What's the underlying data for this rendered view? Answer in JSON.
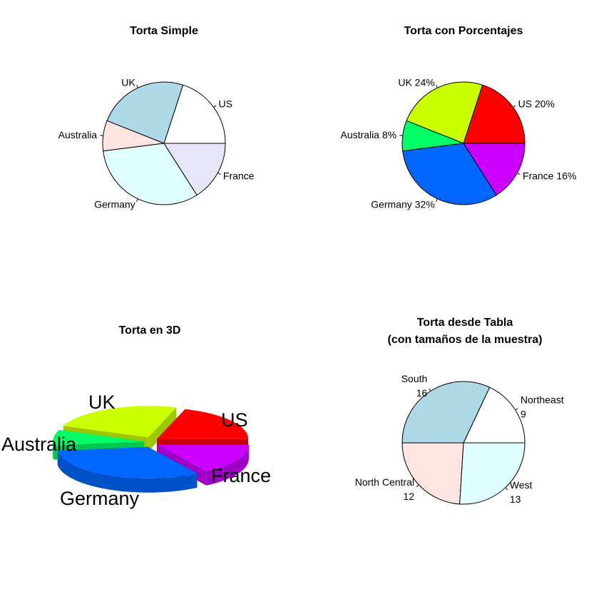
{
  "chart_data": [
    {
      "type": "pie",
      "title": "Torta Simple",
      "categories": [
        "US",
        "UK",
        "Australia",
        "Germany",
        "France"
      ],
      "values": [
        10,
        12,
        4,
        16,
        8
      ],
      "labels": [
        "US",
        "UK",
        "Australia",
        "Germany",
        "France"
      ],
      "colors": [
        "#ffffff",
        "#add8e6",
        "#ffe4e1",
        "#e0ffff",
        "#e6e6fa"
      ]
    },
    {
      "type": "pie",
      "title": "Torta con Porcentajes",
      "categories": [
        "US",
        "UK",
        "Australia",
        "Germany",
        "France"
      ],
      "values": [
        10,
        12,
        4,
        16,
        8
      ],
      "labels": [
        "US 20%",
        "UK 24%",
        "Australia 8%",
        "Germany 32%",
        "France 16%"
      ],
      "colors": [
        "#ff0000",
        "#ccff00",
        "#00ff66",
        "#0066ff",
        "#cc00ff"
      ]
    },
    {
      "type": "pie",
      "title": "Torta en 3D",
      "categories": [
        "US",
        "UK",
        "Australia",
        "Germany",
        "France"
      ],
      "values": [
        10,
        12,
        4,
        16,
        8
      ],
      "labels": [
        "US",
        "UK",
        "Australia",
        "Germany",
        "France"
      ],
      "colors": [
        "#ff0000",
        "#ccff00",
        "#00ff66",
        "#0066ff",
        "#cc00ff"
      ],
      "exploded": true,
      "three_d": true
    },
    {
      "type": "pie",
      "title": "Torta desde Tabla",
      "subtitle": "(con tamaños de la muestra)",
      "categories": [
        "Northeast",
        "South",
        "North Central",
        "West"
      ],
      "values": [
        9,
        16,
        12,
        13
      ],
      "labels": [
        "Northeast\n9",
        "South\n16",
        "North Central\n12",
        "West\n13"
      ],
      "colors": [
        "#ffffff",
        "#add8e6",
        "#ffe4e1",
        "#e0ffff"
      ]
    }
  ]
}
